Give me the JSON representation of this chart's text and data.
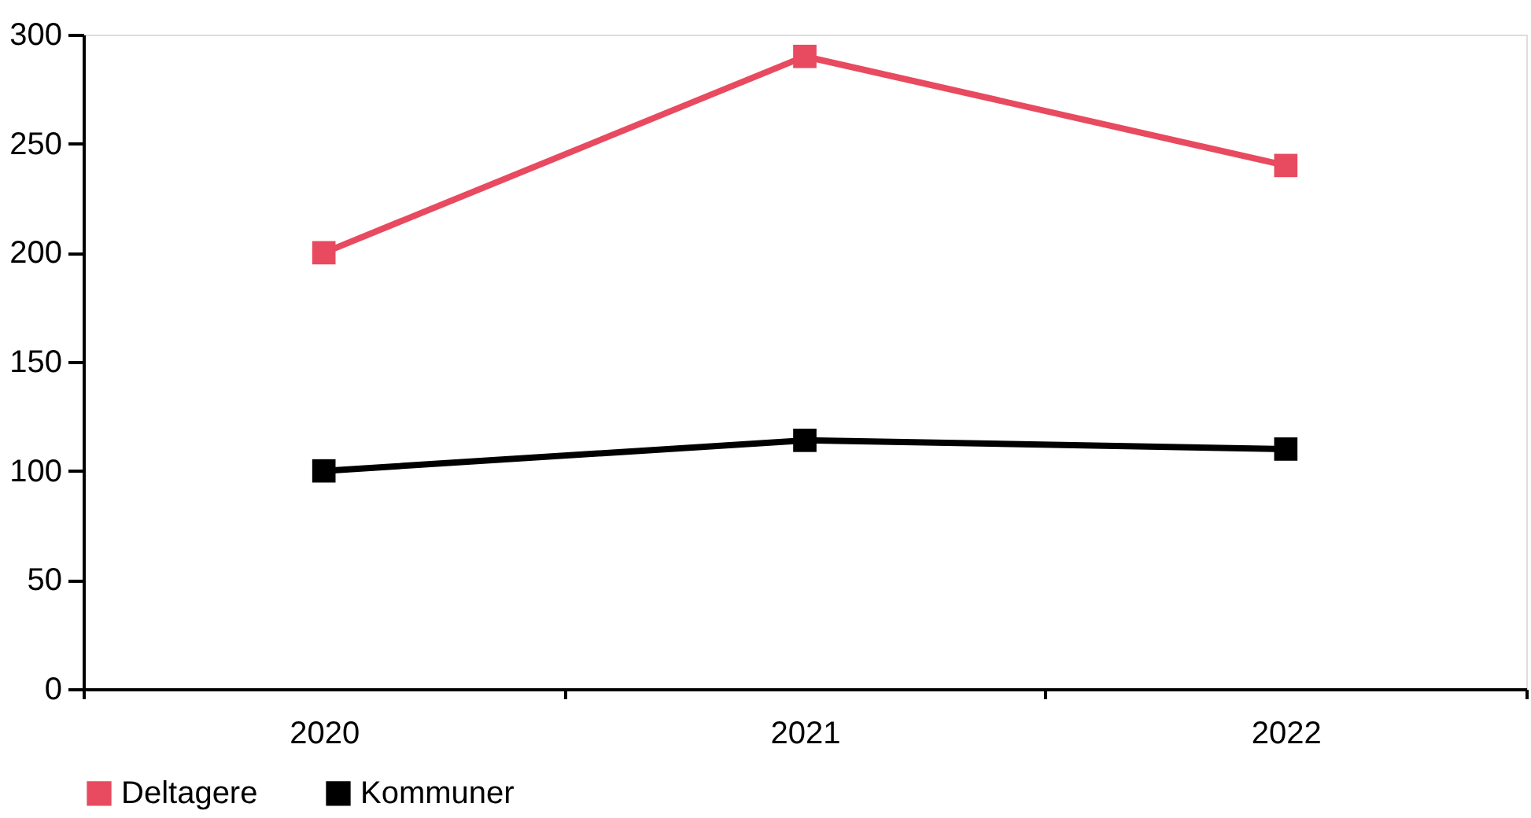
{
  "chart_data": {
    "type": "line",
    "categories": [
      "2020",
      "2021",
      "2022"
    ],
    "series": [
      {
        "name": "Deltagere",
        "color": "#e84a5f",
        "values": [
          200,
          290,
          240
        ]
      },
      {
        "name": "Kommuner",
        "color": "#000000",
        "values": [
          100,
          114,
          110
        ]
      }
    ],
    "ylim": [
      0,
      300
    ],
    "yticks": [
      0,
      50,
      100,
      150,
      200,
      250,
      300
    ],
    "grid": false,
    "legend": "bottom",
    "marker": "square",
    "line_style": "solid"
  }
}
